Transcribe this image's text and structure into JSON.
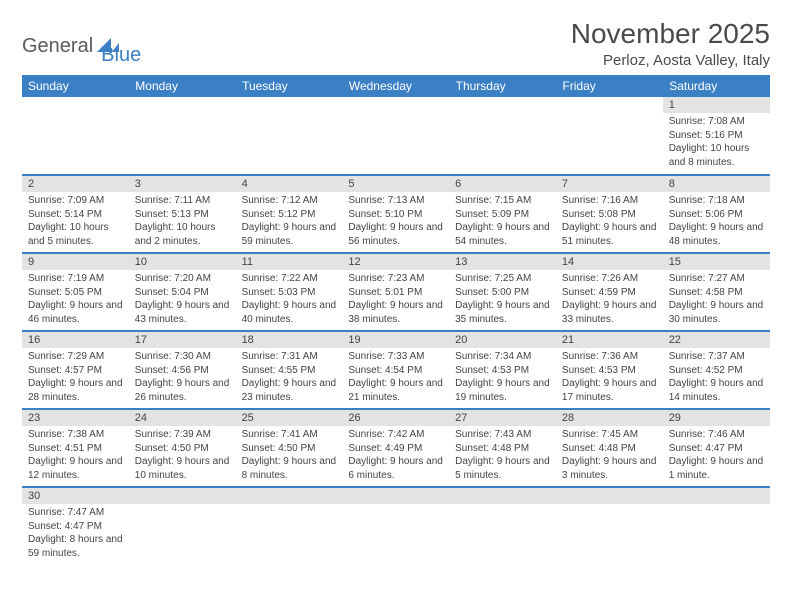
{
  "logo": {
    "part1": "General",
    "part2": "Blue"
  },
  "title": "November 2025",
  "location": "Perloz, Aosta Valley, Italy",
  "colors": {
    "header_bg": "#3b7fc4",
    "header_text": "#ffffff",
    "daynum_bg": "#e3e3e3",
    "divider": "#3b7fc4",
    "text": "#444444"
  },
  "weekdays": [
    "Sunday",
    "Monday",
    "Tuesday",
    "Wednesday",
    "Thursday",
    "Friday",
    "Saturday"
  ],
  "weeks": [
    [
      null,
      null,
      null,
      null,
      null,
      null,
      {
        "n": "1",
        "sr": "Sunrise: 7:08 AM",
        "ss": "Sunset: 5:16 PM",
        "dl": "Daylight: 10 hours and 8 minutes."
      }
    ],
    [
      {
        "n": "2",
        "sr": "Sunrise: 7:09 AM",
        "ss": "Sunset: 5:14 PM",
        "dl": "Daylight: 10 hours and 5 minutes."
      },
      {
        "n": "3",
        "sr": "Sunrise: 7:11 AM",
        "ss": "Sunset: 5:13 PM",
        "dl": "Daylight: 10 hours and 2 minutes."
      },
      {
        "n": "4",
        "sr": "Sunrise: 7:12 AM",
        "ss": "Sunset: 5:12 PM",
        "dl": "Daylight: 9 hours and 59 minutes."
      },
      {
        "n": "5",
        "sr": "Sunrise: 7:13 AM",
        "ss": "Sunset: 5:10 PM",
        "dl": "Daylight: 9 hours and 56 minutes."
      },
      {
        "n": "6",
        "sr": "Sunrise: 7:15 AM",
        "ss": "Sunset: 5:09 PM",
        "dl": "Daylight: 9 hours and 54 minutes."
      },
      {
        "n": "7",
        "sr": "Sunrise: 7:16 AM",
        "ss": "Sunset: 5:08 PM",
        "dl": "Daylight: 9 hours and 51 minutes."
      },
      {
        "n": "8",
        "sr": "Sunrise: 7:18 AM",
        "ss": "Sunset: 5:06 PM",
        "dl": "Daylight: 9 hours and 48 minutes."
      }
    ],
    [
      {
        "n": "9",
        "sr": "Sunrise: 7:19 AM",
        "ss": "Sunset: 5:05 PM",
        "dl": "Daylight: 9 hours and 46 minutes."
      },
      {
        "n": "10",
        "sr": "Sunrise: 7:20 AM",
        "ss": "Sunset: 5:04 PM",
        "dl": "Daylight: 9 hours and 43 minutes."
      },
      {
        "n": "11",
        "sr": "Sunrise: 7:22 AM",
        "ss": "Sunset: 5:03 PM",
        "dl": "Daylight: 9 hours and 40 minutes."
      },
      {
        "n": "12",
        "sr": "Sunrise: 7:23 AM",
        "ss": "Sunset: 5:01 PM",
        "dl": "Daylight: 9 hours and 38 minutes."
      },
      {
        "n": "13",
        "sr": "Sunrise: 7:25 AM",
        "ss": "Sunset: 5:00 PM",
        "dl": "Daylight: 9 hours and 35 minutes."
      },
      {
        "n": "14",
        "sr": "Sunrise: 7:26 AM",
        "ss": "Sunset: 4:59 PM",
        "dl": "Daylight: 9 hours and 33 minutes."
      },
      {
        "n": "15",
        "sr": "Sunrise: 7:27 AM",
        "ss": "Sunset: 4:58 PM",
        "dl": "Daylight: 9 hours and 30 minutes."
      }
    ],
    [
      {
        "n": "16",
        "sr": "Sunrise: 7:29 AM",
        "ss": "Sunset: 4:57 PM",
        "dl": "Daylight: 9 hours and 28 minutes."
      },
      {
        "n": "17",
        "sr": "Sunrise: 7:30 AM",
        "ss": "Sunset: 4:56 PM",
        "dl": "Daylight: 9 hours and 26 minutes."
      },
      {
        "n": "18",
        "sr": "Sunrise: 7:31 AM",
        "ss": "Sunset: 4:55 PM",
        "dl": "Daylight: 9 hours and 23 minutes."
      },
      {
        "n": "19",
        "sr": "Sunrise: 7:33 AM",
        "ss": "Sunset: 4:54 PM",
        "dl": "Daylight: 9 hours and 21 minutes."
      },
      {
        "n": "20",
        "sr": "Sunrise: 7:34 AM",
        "ss": "Sunset: 4:53 PM",
        "dl": "Daylight: 9 hours and 19 minutes."
      },
      {
        "n": "21",
        "sr": "Sunrise: 7:36 AM",
        "ss": "Sunset: 4:53 PM",
        "dl": "Daylight: 9 hours and 17 minutes."
      },
      {
        "n": "22",
        "sr": "Sunrise: 7:37 AM",
        "ss": "Sunset: 4:52 PM",
        "dl": "Daylight: 9 hours and 14 minutes."
      }
    ],
    [
      {
        "n": "23",
        "sr": "Sunrise: 7:38 AM",
        "ss": "Sunset: 4:51 PM",
        "dl": "Daylight: 9 hours and 12 minutes."
      },
      {
        "n": "24",
        "sr": "Sunrise: 7:39 AM",
        "ss": "Sunset: 4:50 PM",
        "dl": "Daylight: 9 hours and 10 minutes."
      },
      {
        "n": "25",
        "sr": "Sunrise: 7:41 AM",
        "ss": "Sunset: 4:50 PM",
        "dl": "Daylight: 9 hours and 8 minutes."
      },
      {
        "n": "26",
        "sr": "Sunrise: 7:42 AM",
        "ss": "Sunset: 4:49 PM",
        "dl": "Daylight: 9 hours and 6 minutes."
      },
      {
        "n": "27",
        "sr": "Sunrise: 7:43 AM",
        "ss": "Sunset: 4:48 PM",
        "dl": "Daylight: 9 hours and 5 minutes."
      },
      {
        "n": "28",
        "sr": "Sunrise: 7:45 AM",
        "ss": "Sunset: 4:48 PM",
        "dl": "Daylight: 9 hours and 3 minutes."
      },
      {
        "n": "29",
        "sr": "Sunrise: 7:46 AM",
        "ss": "Sunset: 4:47 PM",
        "dl": "Daylight: 9 hours and 1 minute."
      }
    ],
    [
      {
        "n": "30",
        "sr": "Sunrise: 7:47 AM",
        "ss": "Sunset: 4:47 PM",
        "dl": "Daylight: 8 hours and 59 minutes."
      },
      null,
      null,
      null,
      null,
      null,
      null
    ]
  ]
}
